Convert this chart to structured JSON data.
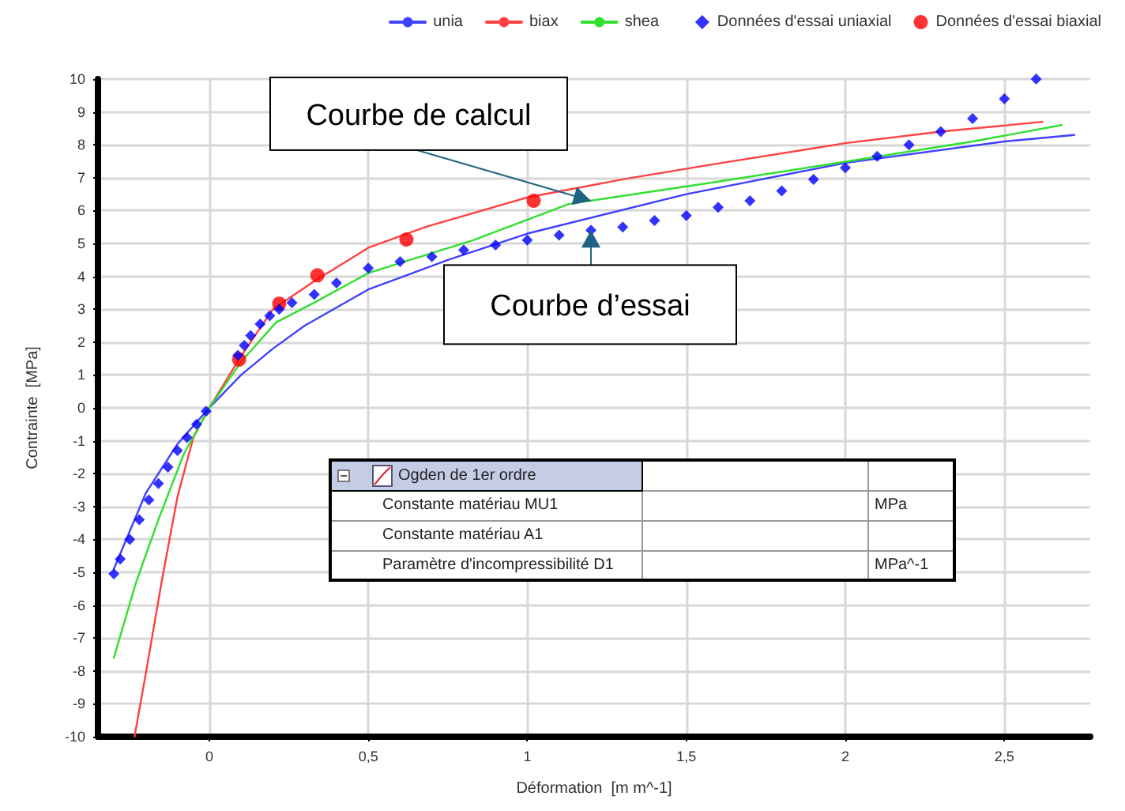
{
  "chart_data": {
    "type": "line",
    "xlabel": "Déformation  [m m^-1]",
    "ylabel": "Contrainte  [MPa]",
    "xlim": [
      -0.35,
      2.77
    ],
    "xticks": [
      0,
      {
        "value": 0.5,
        "label": "0,5"
      },
      1,
      {
        "value": 1.5,
        "label": "1,5"
      },
      2,
      {
        "value": 2.5,
        "label": "2,5"
      }
    ],
    "ylim": [
      -10,
      10
    ],
    "yticks": [
      -10,
      -9,
      -8,
      -7,
      -6,
      -5,
      -4,
      -3,
      -2,
      -1,
      0,
      1,
      2,
      3,
      4,
      5,
      6,
      7,
      8,
      9,
      10
    ],
    "grid": true,
    "legend": "top right",
    "line_style": "solid",
    "series": [
      {
        "name": "unia",
        "color": "#4040ff",
        "x": [
          -0.3,
          -0.2,
          -0.1,
          0,
          0.1,
          0.2,
          0.3,
          0.5,
          0.75,
          1,
          1.5,
          2,
          2.5,
          2.72
        ],
        "values": [
          -4.9,
          -2.6,
          -1.1,
          0,
          1.0,
          1.8,
          2.5,
          3.6,
          4.5,
          5.3,
          6.5,
          7.45,
          8.1,
          8.3
        ]
      },
      {
        "name": "biax",
        "color": "#ff4040",
        "x": [
          -0.235,
          -0.2,
          -0.15,
          -0.1,
          -0.05,
          0,
          0.095,
          0.2,
          0.33,
          0.5,
          0.68,
          1,
          1.3,
          1.58,
          2,
          2.3,
          2.62
        ],
        "values": [
          -10,
          -8.1,
          -5.3,
          -2.7,
          -0.9,
          0,
          1.5,
          3.0,
          3.85,
          4.87,
          5.5,
          6.4,
          6.95,
          7.4,
          8.05,
          8.4,
          8.7
        ]
      },
      {
        "name": "shea",
        "color": "#30e030",
        "x": [
          -0.3,
          -0.23,
          -0.16,
          -0.08,
          0,
          0.1,
          0.21,
          0.33,
          0.5,
          0.83,
          1.13,
          1.58,
          2.01,
          2.4,
          2.68
        ],
        "values": [
          -7.6,
          -5.3,
          -3.4,
          -1.4,
          0,
          1.4,
          2.6,
          3.2,
          4.1,
          5.1,
          6.2,
          6.85,
          7.5,
          8.1,
          8.6
        ]
      },
      {
        "name": "Données d'essai uniaxial",
        "type": "scatter",
        "marker": "diamond",
        "color": "#0000ff",
        "x": [
          -0.3,
          -0.28,
          -0.25,
          -0.22,
          -0.19,
          -0.16,
          -0.13,
          -0.1,
          -0.07,
          -0.04,
          -0.01,
          0.09,
          0.11,
          0.13,
          0.16,
          0.19,
          0.22,
          0.26,
          0.33,
          0.4,
          0.5,
          0.6,
          0.7,
          0.8,
          0.9,
          1.0,
          1.1,
          1.2,
          1.3,
          1.4,
          1.5,
          1.6,
          1.7,
          1.8,
          1.9,
          2.0,
          2.1,
          2.2,
          2.3,
          2.4,
          2.5,
          2.6
        ],
        "values": [
          -5.05,
          -4.6,
          -4.0,
          -3.4,
          -2.8,
          -2.3,
          -1.8,
          -1.3,
          -0.9,
          -0.5,
          -0.1,
          1.6,
          1.9,
          2.2,
          2.55,
          2.8,
          3.0,
          3.2,
          3.45,
          3.8,
          4.25,
          4.45,
          4.6,
          4.8,
          4.95,
          5.1,
          5.25,
          5.4,
          5.5,
          5.7,
          5.85,
          6.1,
          6.3,
          6.6,
          6.95,
          7.3,
          7.65,
          8.0,
          8.4,
          8.8,
          9.4,
          10.0
        ]
      },
      {
        "name": "Données d'essai biaxial",
        "type": "scatter",
        "marker": "circle",
        "color": "#ff0000",
        "x": [
          0.094,
          0.22,
          0.34,
          0.62,
          1.02
        ],
        "values": [
          1.47,
          3.17,
          4.03,
          5.12,
          6.3
        ]
      }
    ],
    "annotations": [
      {
        "text": "Courbe de calcul",
        "x": 1.2,
        "y": 6.3
      },
      {
        "text": "Courbe d’essai",
        "x": 1.2,
        "y": 5.4
      },
      "Ogden de 1er ordre",
      "Constante matériau MU1",
      "MPa",
      "Constante matériau A1",
      "Paramètre d'incompressibilité D1",
      "MPa^-1"
    ]
  }
}
